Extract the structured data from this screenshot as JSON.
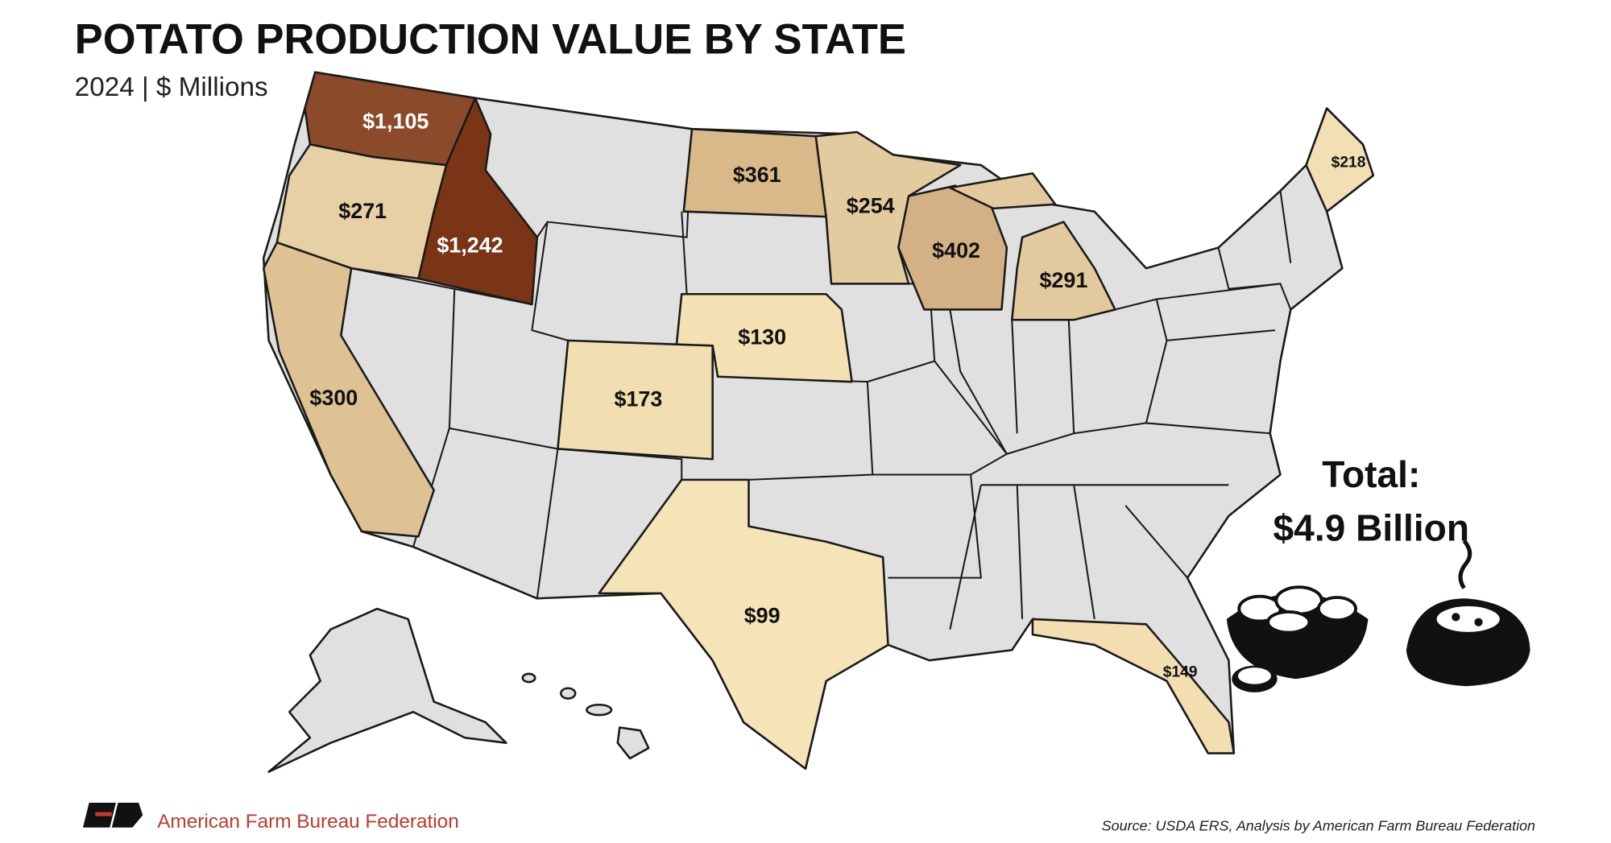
{
  "chart_data": {
    "type": "choropleth",
    "title": "POTATO PRODUCTION VALUE BY STATE",
    "subtitle": "2024 | $ Millions",
    "values": [
      1105,
      1242,
      271,
      300,
      361,
      254,
      402,
      291,
      218,
      130,
      173,
      99,
      149
    ],
    "value_labels": [
      "$1,105",
      "$1,242",
      "$271",
      "$300",
      "$361",
      "$254",
      "$402",
      "$291",
      "$218",
      "$130",
      "$173",
      "$99",
      "$149"
    ],
    "colors": [
      "#8b4a2a",
      "#7a3416",
      "#e8d0a6",
      "#dfc293",
      "#d9b88a",
      "#e3cba0",
      "#d4b184",
      "#e3c99e",
      "#f2dfb4",
      "#f3e1b4",
      "#f1dfb2",
      "#f5e4b8",
      "#f2deb0"
    ],
    "total_title": "Total:",
    "total_label": "$4.9 Billion",
    "organization": "American Farm Bureau Federation",
    "source": "Source: USDA ERS, Analysis by American Farm Bureau Federation"
  }
}
